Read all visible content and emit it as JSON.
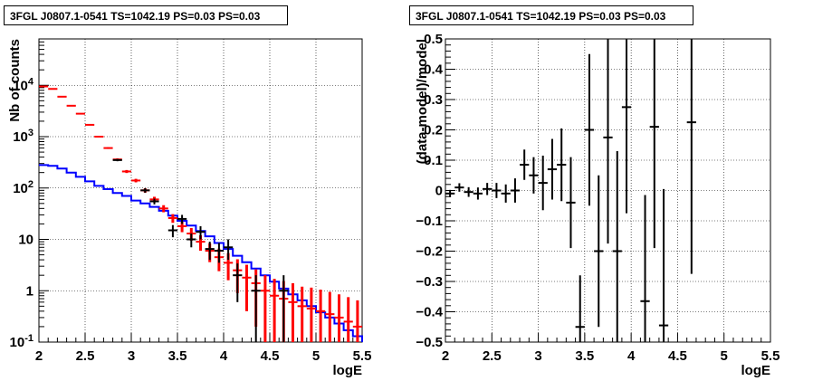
{
  "chart_data": [
    {
      "type": "histogram",
      "title": "3FGL J0807.1-0541 TS=1042.19 PS=0.03 PS=0.03",
      "xlabel": "logE",
      "ylabel": "Nb of counts",
      "xlim": [
        2,
        5.5
      ],
      "ylim": [
        0.1,
        80000
      ],
      "yscale": "log",
      "grid": true,
      "x_ticks": [
        "2",
        "2.5",
        "3",
        "3.5",
        "4",
        "4.5",
        "5",
        "5.5"
      ],
      "y_ticks": [
        "10^-1",
        "1",
        "10",
        "10^2",
        "10^3",
        "10^4"
      ],
      "bin_edges": [
        2.0,
        2.1,
        2.2,
        2.3,
        2.4,
        2.5,
        2.6,
        2.7,
        2.8,
        2.9,
        3.0,
        3.1,
        3.2,
        3.3,
        3.4,
        3.5,
        3.6,
        3.7,
        3.8,
        3.9,
        4.0,
        4.1,
        4.2,
        4.3,
        4.4,
        4.5,
        4.6,
        4.7,
        4.8,
        4.9,
        5.0,
        5.1,
        5.2,
        5.3,
        5.4,
        5.5
      ],
      "series": [
        {
          "color": "#0000ff",
          "style": "step",
          "values": [
            280,
            270,
            240,
            200,
            165,
            135,
            110,
            95,
            80,
            70,
            57,
            50,
            43,
            36,
            29,
            23,
            18.5,
            14.5,
            11.5,
            8.5,
            6.5,
            4.8,
            3.6,
            2.7,
            2.0,
            1.5,
            1.1,
            0.85,
            0.65,
            0.5,
            0.38,
            0.3,
            0.23,
            0.17,
            0.13
          ]
        },
        {
          "color": "#ff0000",
          "style": "error-bars",
          "x": [
            2.05,
            2.15,
            2.25,
            2.35,
            2.45,
            2.55,
            2.65,
            2.75,
            2.85,
            2.95,
            3.05,
            3.15,
            3.25,
            3.35,
            3.45,
            3.55,
            3.65,
            3.75,
            3.85,
            3.95,
            4.05,
            4.15,
            4.25,
            4.35,
            4.45,
            4.55,
            4.65,
            4.75,
            4.85,
            4.95,
            5.05,
            5.15,
            5.25,
            5.35,
            5.45
          ],
          "y": [
            9500,
            8500,
            6000,
            4000,
            2800,
            1700,
            1000,
            600,
            360,
            210,
            140,
            90,
            60,
            40,
            26,
            18,
            13,
            9,
            6,
            4.5,
            3.5,
            2.5,
            1.8,
            1.4,
            1.0,
            0.8,
            0.7,
            0.6,
            0.5,
            0.45,
            0.4,
            0.35,
            0.3,
            0.25,
            0.2
          ],
          "err": [
            100,
            90,
            75,
            60,
            50,
            40,
            30,
            23,
            18,
            14,
            11,
            9,
            7.5,
            6.3,
            5,
            4.2,
            3.6,
            3,
            2.4,
            2.1,
            1.9,
            1.6,
            1.4,
            1.2,
            1,
            0.9,
            0.85,
            0.8,
            0.7,
            0.7,
            0.65,
            0.6,
            0.55,
            0.5,
            0.45
          ]
        },
        {
          "color": "#000000",
          "style": "error-bars",
          "x": [
            2.85,
            3.15,
            3.25,
            3.45,
            3.55,
            3.65,
            3.75,
            3.85,
            3.95,
            4.05,
            4.15,
            4.35,
            4.65
          ],
          "y": [
            350,
            90,
            55,
            15,
            25,
            10,
            14,
            6.5,
            6,
            7,
            2,
            1,
            1
          ],
          "err": [
            18,
            9,
            7,
            4,
            5,
            3,
            4,
            2.5,
            2.5,
            3,
            1.4,
            1,
            1
          ]
        }
      ]
    },
    {
      "type": "scatter",
      "title": "3FGL J0807.1-0541 TS=1042.19 PS=0.03 PS=0.03",
      "xlabel": "logE",
      "ylabel": "(data-model)/model",
      "xlim": [
        2,
        5.5
      ],
      "ylim": [
        -0.5,
        0.5
      ],
      "grid": true,
      "x_ticks": [
        "2",
        "2.5",
        "3",
        "3.5",
        "4",
        "4.5",
        "5",
        "5.5"
      ],
      "y_ticks": [
        "-0.5",
        "-0.4",
        "-0.3",
        "-0.2",
        "-0.1",
        "0",
        "0.1",
        "0.2",
        "0.3",
        "0.4",
        "0.5"
      ],
      "series": [
        {
          "color": "#000000",
          "x": [
            2.05,
            2.15,
            2.25,
            2.35,
            2.45,
            2.55,
            2.65,
            2.75,
            2.85,
            2.95,
            3.05,
            3.15,
            3.25,
            3.35,
            3.45,
            3.55,
            3.65,
            3.75,
            3.85,
            3.95,
            4.15,
            4.25,
            4.35,
            4.65
          ],
          "y": [
            -0.01,
            0.01,
            -0.005,
            -0.01,
            0.005,
            0.0,
            -0.01,
            0.0,
            0.085,
            0.05,
            0.025,
            0.07,
            0.085,
            -0.04,
            -0.45,
            0.2,
            -0.2,
            0.175,
            -0.2,
            0.275,
            -0.365,
            0.21,
            -0.445,
            0.225
          ],
          "err": [
            0.012,
            0.014,
            0.016,
            0.02,
            0.02,
            0.025,
            0.03,
            0.04,
            0.05,
            0.06,
            0.09,
            0.1,
            0.12,
            0.15,
            0.17,
            0.25,
            0.25,
            0.35,
            0.33,
            0.35,
            0.35,
            0.4,
            0.45,
            0.5
          ]
        }
      ]
    }
  ]
}
